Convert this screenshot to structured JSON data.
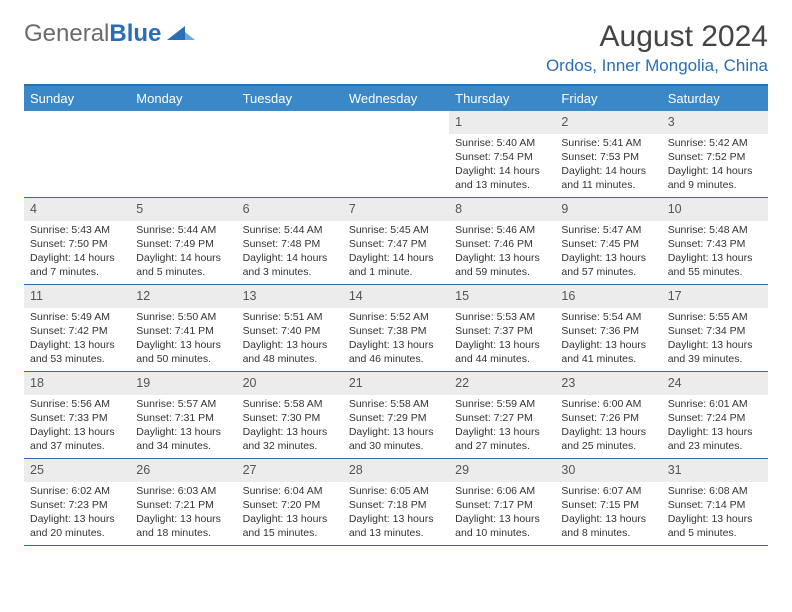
{
  "logo": {
    "part1": "General",
    "part2": "Blue"
  },
  "title": "August 2024",
  "location": "Ordos, Inner Mongolia, China",
  "colors": {
    "accent": "#2a6fb5",
    "header_bg": "#3b88c9",
    "daynum_bg": "#ececec",
    "text": "#333333"
  },
  "daysOfWeek": [
    "Sunday",
    "Monday",
    "Tuesday",
    "Wednesday",
    "Thursday",
    "Friday",
    "Saturday"
  ],
  "weeks": [
    [
      null,
      null,
      null,
      null,
      {
        "n": "1",
        "sr": "5:40 AM",
        "ss": "7:54 PM",
        "dl": "14 hours and 13 minutes."
      },
      {
        "n": "2",
        "sr": "5:41 AM",
        "ss": "7:53 PM",
        "dl": "14 hours and 11 minutes."
      },
      {
        "n": "3",
        "sr": "5:42 AM",
        "ss": "7:52 PM",
        "dl": "14 hours and 9 minutes."
      }
    ],
    [
      {
        "n": "4",
        "sr": "5:43 AM",
        "ss": "7:50 PM",
        "dl": "14 hours and 7 minutes."
      },
      {
        "n": "5",
        "sr": "5:44 AM",
        "ss": "7:49 PM",
        "dl": "14 hours and 5 minutes."
      },
      {
        "n": "6",
        "sr": "5:44 AM",
        "ss": "7:48 PM",
        "dl": "14 hours and 3 minutes."
      },
      {
        "n": "7",
        "sr": "5:45 AM",
        "ss": "7:47 PM",
        "dl": "14 hours and 1 minute."
      },
      {
        "n": "8",
        "sr": "5:46 AM",
        "ss": "7:46 PM",
        "dl": "13 hours and 59 minutes."
      },
      {
        "n": "9",
        "sr": "5:47 AM",
        "ss": "7:45 PM",
        "dl": "13 hours and 57 minutes."
      },
      {
        "n": "10",
        "sr": "5:48 AM",
        "ss": "7:43 PM",
        "dl": "13 hours and 55 minutes."
      }
    ],
    [
      {
        "n": "11",
        "sr": "5:49 AM",
        "ss": "7:42 PM",
        "dl": "13 hours and 53 minutes."
      },
      {
        "n": "12",
        "sr": "5:50 AM",
        "ss": "7:41 PM",
        "dl": "13 hours and 50 minutes."
      },
      {
        "n": "13",
        "sr": "5:51 AM",
        "ss": "7:40 PM",
        "dl": "13 hours and 48 minutes."
      },
      {
        "n": "14",
        "sr": "5:52 AM",
        "ss": "7:38 PM",
        "dl": "13 hours and 46 minutes."
      },
      {
        "n": "15",
        "sr": "5:53 AM",
        "ss": "7:37 PM",
        "dl": "13 hours and 44 minutes."
      },
      {
        "n": "16",
        "sr": "5:54 AM",
        "ss": "7:36 PM",
        "dl": "13 hours and 41 minutes."
      },
      {
        "n": "17",
        "sr": "5:55 AM",
        "ss": "7:34 PM",
        "dl": "13 hours and 39 minutes."
      }
    ],
    [
      {
        "n": "18",
        "sr": "5:56 AM",
        "ss": "7:33 PM",
        "dl": "13 hours and 37 minutes."
      },
      {
        "n": "19",
        "sr": "5:57 AM",
        "ss": "7:31 PM",
        "dl": "13 hours and 34 minutes."
      },
      {
        "n": "20",
        "sr": "5:58 AM",
        "ss": "7:30 PM",
        "dl": "13 hours and 32 minutes."
      },
      {
        "n": "21",
        "sr": "5:58 AM",
        "ss": "7:29 PM",
        "dl": "13 hours and 30 minutes."
      },
      {
        "n": "22",
        "sr": "5:59 AM",
        "ss": "7:27 PM",
        "dl": "13 hours and 27 minutes."
      },
      {
        "n": "23",
        "sr": "6:00 AM",
        "ss": "7:26 PM",
        "dl": "13 hours and 25 minutes."
      },
      {
        "n": "24",
        "sr": "6:01 AM",
        "ss": "7:24 PM",
        "dl": "13 hours and 23 minutes."
      }
    ],
    [
      {
        "n": "25",
        "sr": "6:02 AM",
        "ss": "7:23 PM",
        "dl": "13 hours and 20 minutes."
      },
      {
        "n": "26",
        "sr": "6:03 AM",
        "ss": "7:21 PM",
        "dl": "13 hours and 18 minutes."
      },
      {
        "n": "27",
        "sr": "6:04 AM",
        "ss": "7:20 PM",
        "dl": "13 hours and 15 minutes."
      },
      {
        "n": "28",
        "sr": "6:05 AM",
        "ss": "7:18 PM",
        "dl": "13 hours and 13 minutes."
      },
      {
        "n": "29",
        "sr": "6:06 AM",
        "ss": "7:17 PM",
        "dl": "13 hours and 10 minutes."
      },
      {
        "n": "30",
        "sr": "6:07 AM",
        "ss": "7:15 PM",
        "dl": "13 hours and 8 minutes."
      },
      {
        "n": "31",
        "sr": "6:08 AM",
        "ss": "7:14 PM",
        "dl": "13 hours and 5 minutes."
      }
    ]
  ],
  "labels": {
    "sunrise": "Sunrise:",
    "sunset": "Sunset:",
    "daylight": "Daylight:"
  }
}
